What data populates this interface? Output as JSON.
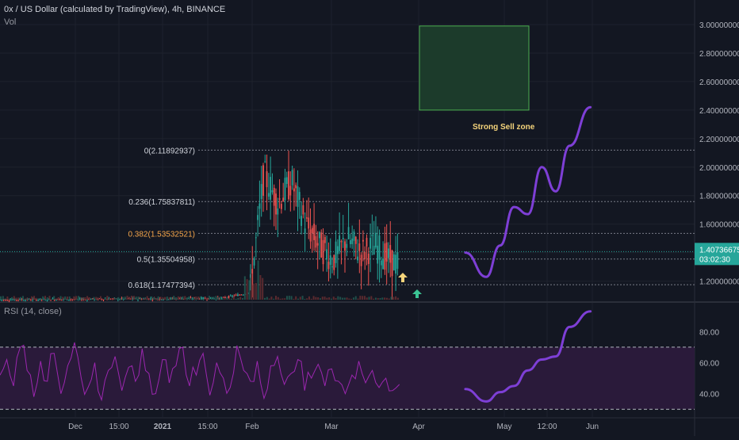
{
  "header": {
    "title": "0x / US Dollar (calculated by TradingView), 4h, BINANCE",
    "vol_label": "Vol",
    "rsi_label": "RSI (14, close)"
  },
  "colors": {
    "background": "#131722",
    "grid": "#1e222d",
    "up": "#26a69a",
    "down": "#ef5350",
    "projection": "#7e3fd6",
    "rsi_line": "#9c27b0",
    "rsi_band": "#2a1a3a",
    "zone_fill": "#1c3b2b",
    "zone_border": "#4caf50",
    "fib_line": "#787b86",
    "fib_orange": "#f7a74b",
    "arrow_yellow": "#f5d47b",
    "arrow_green": "#3bc494",
    "price_tag": "#26a69a"
  },
  "chart_data": [
    {
      "type": "candlestick",
      "title": "0x / US Dollar (calculated by TradingView), 4h, BINANCE",
      "x_ticks": [
        "Dec",
        "15:00",
        "2021",
        "15:00",
        "Feb",
        "Mar",
        "Apr",
        "May",
        "12:00",
        "Jun"
      ],
      "y_ticks": [
        "1.20000000",
        "1.40000000",
        "1.60000000",
        "1.80000000",
        "2.00000000",
        "2.20000000",
        "2.40000000",
        "2.60000000",
        "2.80000000",
        "3.00000000"
      ],
      "ylim": [
        1.07,
        3.05
      ],
      "last_price": "1.40736675",
      "countdown": "03:02:30",
      "fib_levels": [
        {
          "label": "0(2.11892937)",
          "value": 2.11892937
        },
        {
          "label": "0.236(1.75837811)",
          "value": 1.75837811
        },
        {
          "label": "0.382(1.53532521)",
          "value": 1.53532521
        },
        {
          "label": "0.5(1.35504958)",
          "value": 1.35504958
        },
        {
          "label": "0.618(1.17477394)",
          "value": 1.17477394
        }
      ],
      "zone": {
        "label": "Strong Sell zone",
        "y_bottom": 2.4,
        "y_top": 2.99
      },
      "price_path": [
        [
          0,
          1.07
        ],
        [
          0.32,
          1.08
        ],
        [
          0.36,
          1.12
        ],
        [
          0.38,
          1.95
        ],
        [
          0.4,
          1.75
        ],
        [
          0.42,
          1.9
        ],
        [
          0.44,
          1.6
        ],
        [
          0.46,
          1.45
        ],
        [
          0.48,
          1.35
        ],
        [
          0.5,
          1.5
        ],
        [
          0.52,
          1.4
        ],
        [
          0.54,
          1.45
        ],
        [
          0.56,
          1.35
        ],
        [
          0.58,
          1.3
        ],
        [
          0.6,
          1.45
        ],
        [
          0.62,
          1.55
        ],
        [
          0.64,
          1.58
        ],
        [
          0.66,
          1.42
        ],
        [
          0.67,
          1.4
        ]
      ],
      "projection_path": [
        [
          0.67,
          1.4
        ],
        [
          0.7,
          1.23
        ],
        [
          0.72,
          1.45
        ],
        [
          0.74,
          1.72
        ],
        [
          0.76,
          1.67
        ],
        [
          0.78,
          2.0
        ],
        [
          0.8,
          1.83
        ],
        [
          0.82,
          2.15
        ],
        [
          0.85,
          2.42
        ]
      ]
    },
    {
      "type": "line",
      "title": "RSI (14, close)",
      "y_ticks": [
        "40.00",
        "60.00",
        "80.00"
      ],
      "ylim": [
        25,
        98
      ],
      "bands": [
        30,
        70
      ],
      "rsi_values": [
        52,
        62,
        45,
        70,
        55,
        38,
        61,
        48,
        66,
        40,
        58,
        73,
        50,
        44,
        60,
        36,
        55,
        64,
        42,
        57,
        48,
        69,
        53,
        40,
        62,
        47,
        58,
        70,
        45,
        52,
        66,
        39,
        60,
        50,
        44,
        71,
        55,
        48,
        61,
        37,
        58,
        64,
        46,
        53,
        62,
        42,
        50,
        59,
        45,
        56,
        48,
        40,
        52,
        61,
        47,
        55,
        44,
        50,
        42,
        46
      ],
      "rsi_projection": [
        [
          0.67,
          43
        ],
        [
          0.7,
          35
        ],
        [
          0.72,
          41
        ],
        [
          0.74,
          45
        ],
        [
          0.76,
          55
        ],
        [
          0.78,
          62
        ],
        [
          0.8,
          64
        ],
        [
          0.82,
          83
        ],
        [
          0.85,
          93
        ]
      ]
    }
  ]
}
